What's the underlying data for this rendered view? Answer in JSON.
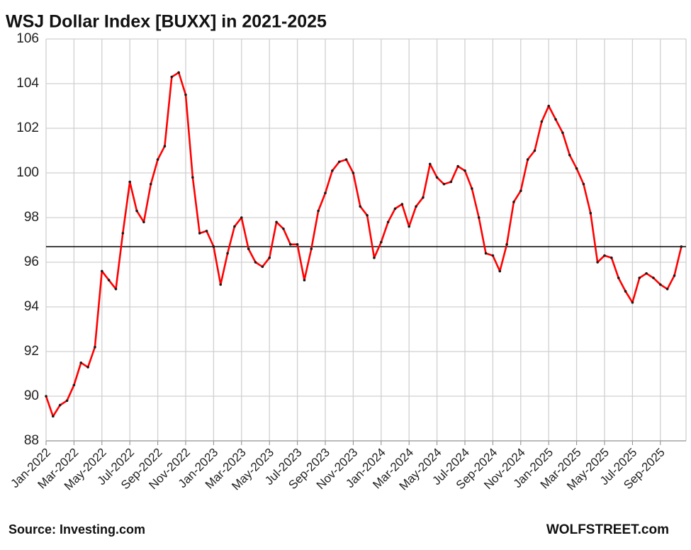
{
  "chart_data": {
    "type": "line",
    "title": "WSJ Dollar Index [BUXX] in 2021-2025",
    "source": "Source: Investing.com",
    "credit": "WOLFSTREET.com",
    "categories": [
      "Jan-2022",
      null,
      null,
      null,
      "Mar-2022",
      null,
      null,
      null,
      "May-2022",
      null,
      null,
      null,
      "Jul-2022",
      null,
      null,
      null,
      "Sep-2022",
      null,
      null,
      null,
      "Nov-2022",
      null,
      null,
      null,
      "Jan-2023",
      null,
      null,
      null,
      "Mar-2023",
      null,
      null,
      null,
      "May-2023",
      null,
      null,
      null,
      "Jul-2023",
      null,
      null,
      null,
      "Sep-2023",
      null,
      null,
      null,
      "Nov-2023",
      null,
      null,
      null,
      "Jan-2024",
      null,
      null,
      null,
      "Mar-2024",
      null,
      null,
      null,
      "May-2024",
      null,
      null,
      null,
      "Jul-2024",
      null,
      null,
      null,
      "Sep-2024",
      null,
      null,
      null,
      "Nov-2024",
      null,
      null,
      null,
      "Jan-2025",
      null,
      null,
      null,
      "Mar-2025",
      null,
      null,
      null,
      "May-2025",
      null,
      null,
      null,
      "Jul-2025",
      null,
      null,
      null,
      "Sep-2025",
      null,
      null,
      null
    ],
    "values": [
      90.0,
      89.1,
      89.6,
      89.8,
      90.5,
      91.5,
      91.3,
      92.2,
      95.6,
      95.2,
      94.8,
      97.3,
      99.6,
      98.3,
      97.8,
      99.5,
      100.6,
      101.2,
      104.3,
      104.5,
      103.5,
      99.8,
      97.3,
      97.4,
      96.7,
      95.0,
      96.4,
      97.6,
      98.0,
      96.6,
      96.0,
      95.8,
      96.2,
      97.8,
      97.5,
      96.8,
      96.8,
      95.2,
      96.6,
      98.3,
      99.1,
      100.1,
      100.5,
      100.6,
      100.0,
      98.5,
      98.1,
      96.2,
      96.9,
      97.8,
      98.4,
      98.6,
      97.6,
      98.5,
      98.9,
      100.4,
      99.8,
      99.5,
      99.6,
      100.3,
      100.1,
      99.3,
      98.0,
      96.4,
      96.3,
      95.6,
      96.8,
      98.7,
      99.2,
      100.6,
      101.0,
      102.3,
      103.0,
      102.4,
      101.8,
      100.8,
      100.2,
      99.5,
      98.2,
      96.0,
      96.3,
      96.2,
      95.3,
      94.7,
      94.2,
      95.3,
      95.5,
      95.3,
      95.0,
      94.8,
      95.4,
      96.7
    ],
    "color": "#ff0000",
    "marker_color": "#1a1a1a",
    "reference_line": 96.7,
    "reference_color": "#000000",
    "ylim": [
      88,
      106
    ],
    "yticks": [
      88,
      90,
      92,
      94,
      96,
      98,
      100,
      102,
      104,
      106
    ],
    "grid": true
  }
}
